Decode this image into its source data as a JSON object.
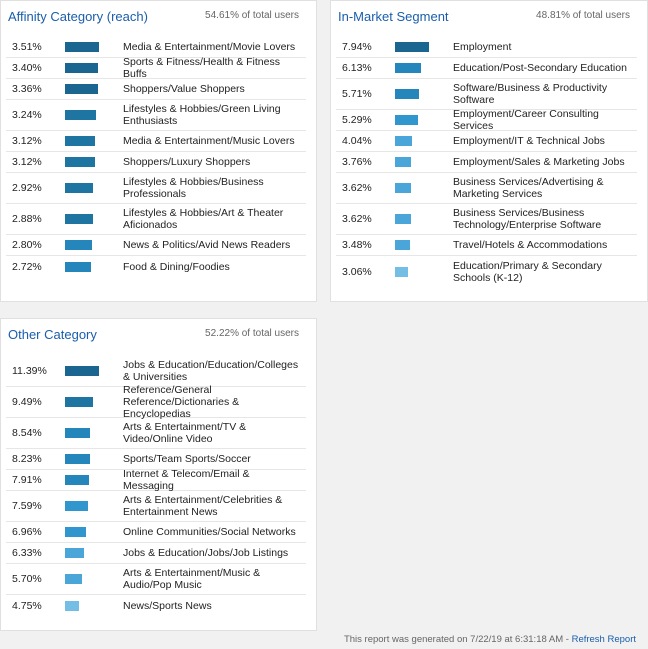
{
  "affinity": {
    "title": "Affinity Category (reach)",
    "meta": "54.61% of total users",
    "rows": [
      {
        "pct": "3.51%",
        "value": 3.51,
        "label": "Media & Entertainment/Movie Lovers"
      },
      {
        "pct": "3.40%",
        "value": 3.4,
        "label": "Sports & Fitness/Health & Fitness Buffs"
      },
      {
        "pct": "3.36%",
        "value": 3.36,
        "label": "Shoppers/Value Shoppers"
      },
      {
        "pct": "3.24%",
        "value": 3.24,
        "label": "Lifestyles & Hobbies/Green Living Enthusiasts"
      },
      {
        "pct": "3.12%",
        "value": 3.12,
        "label": "Media & Entertainment/Music Lovers"
      },
      {
        "pct": "3.12%",
        "value": 3.12,
        "label": "Shoppers/Luxury Shoppers"
      },
      {
        "pct": "2.92%",
        "value": 2.92,
        "label": "Lifestyles & Hobbies/Business Professionals"
      },
      {
        "pct": "2.88%",
        "value": 2.88,
        "label": "Lifestyles & Hobbies/Art & Theater Aficionados"
      },
      {
        "pct": "2.80%",
        "value": 2.8,
        "label": "News & Politics/Avid News Readers"
      },
      {
        "pct": "2.72%",
        "value": 2.72,
        "label": "Food & Dining/Foodies"
      }
    ]
  },
  "inmarket": {
    "title": "In-Market Segment",
    "meta": "48.81% of total users",
    "rows": [
      {
        "pct": "7.94%",
        "value": 7.94,
        "label": "Employment"
      },
      {
        "pct": "6.13%",
        "value": 6.13,
        "label": "Education/Post-Secondary Education"
      },
      {
        "pct": "5.71%",
        "value": 5.71,
        "label": "Software/Business & Productivity Software"
      },
      {
        "pct": "5.29%",
        "value": 5.29,
        "label": "Employment/Career Consulting Services"
      },
      {
        "pct": "4.04%",
        "value": 4.04,
        "label": "Employment/IT & Technical Jobs"
      },
      {
        "pct": "3.76%",
        "value": 3.76,
        "label": "Employment/Sales & Marketing Jobs"
      },
      {
        "pct": "3.62%",
        "value": 3.62,
        "label": "Business Services/Advertising & Marketing Services"
      },
      {
        "pct": "3.62%",
        "value": 3.62,
        "label": "Business Services/Business Technology/Enterprise Software"
      },
      {
        "pct": "3.48%",
        "value": 3.48,
        "label": "Travel/Hotels & Accommodations"
      },
      {
        "pct": "3.06%",
        "value": 3.06,
        "label": "Education/Primary & Secondary Schools (K-12)"
      }
    ]
  },
  "other": {
    "title": "Other Category",
    "meta": "52.22% of total users",
    "rows": [
      {
        "pct": "11.39%",
        "value": 11.39,
        "label": "Jobs & Education/Education/Colleges & Universities"
      },
      {
        "pct": "9.49%",
        "value": 9.49,
        "label": "Reference/General Reference/Dictionaries & Encyclopedias"
      },
      {
        "pct": "8.54%",
        "value": 8.54,
        "label": "Arts & Entertainment/TV & Video/Online Video"
      },
      {
        "pct": "8.23%",
        "value": 8.23,
        "label": "Sports/Team Sports/Soccer"
      },
      {
        "pct": "7.91%",
        "value": 7.91,
        "label": "Internet & Telecom/Email & Messaging"
      },
      {
        "pct": "7.59%",
        "value": 7.59,
        "label": "Arts & Entertainment/Celebrities & Entertainment News"
      },
      {
        "pct": "6.96%",
        "value": 6.96,
        "label": "Online Communities/Social Networks"
      },
      {
        "pct": "6.33%",
        "value": 6.33,
        "label": "Jobs & Education/Jobs/Job Listings"
      },
      {
        "pct": "5.70%",
        "value": 5.7,
        "label": "Arts & Entertainment/Music & Audio/Pop Music"
      },
      {
        "pct": "4.75%",
        "value": 4.75,
        "label": "News/Sports News"
      }
    ]
  },
  "footer": {
    "text": "This report was generated on 7/22/19 at 6:31:18 AM - ",
    "link": "Refresh Report"
  },
  "colors": {
    "title": "#1a5eab",
    "bar_shades": [
      "#1b6690",
      "#1f75a2",
      "#2586bb",
      "#3196cd",
      "#4aa6d8",
      "#74bee6"
    ]
  }
}
